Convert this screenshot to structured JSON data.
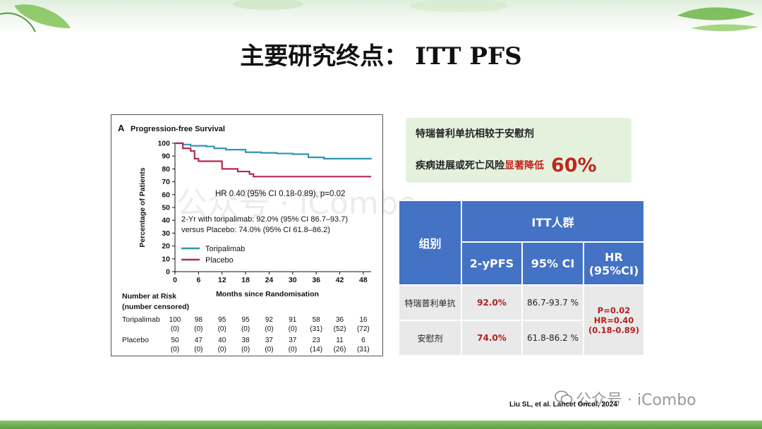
{
  "slide": {
    "title_cn": "主要研究终点：",
    "title_en": "ITT PFS"
  },
  "chart_data": {
    "type": "line",
    "panel_label": "A",
    "title": "Progression-free Survival",
    "xlabel": "Months since Randomisation",
    "ylabel": "Percentage of Patients",
    "xlim": [
      0,
      50
    ],
    "ylim": [
      0,
      100
    ],
    "x_ticks": [
      0,
      6,
      12,
      18,
      24,
      30,
      36,
      42,
      48
    ],
    "y_ticks": [
      0,
      10,
      20,
      30,
      40,
      50,
      60,
      70,
      80,
      90,
      100
    ],
    "grid": false,
    "legend_position": "bottom-left",
    "series": [
      {
        "name": "Toripalimab",
        "color": "#2e95b3",
        "points": [
          [
            0,
            100
          ],
          [
            2,
            99
          ],
          [
            4,
            98
          ],
          [
            8,
            97.5
          ],
          [
            10,
            96
          ],
          [
            13,
            95
          ],
          [
            18,
            93
          ],
          [
            22,
            92.5
          ],
          [
            26,
            92
          ],
          [
            30,
            91.5
          ],
          [
            34,
            89
          ],
          [
            38,
            88
          ],
          [
            44,
            88
          ],
          [
            50,
            87.5
          ]
        ]
      },
      {
        "name": "Placebo",
        "color": "#b22a4d",
        "points": [
          [
            0,
            100
          ],
          [
            2,
            96
          ],
          [
            4,
            94
          ],
          [
            5,
            88
          ],
          [
            6,
            86
          ],
          [
            11,
            86
          ],
          [
            12,
            80
          ],
          [
            15,
            80
          ],
          [
            16,
            78
          ],
          [
            19,
            76
          ],
          [
            20,
            74
          ],
          [
            50,
            74
          ]
        ]
      }
    ],
    "annotations": [
      "HR 0.40 (95% CI 0.18-0.89), p=0.02",
      "2-Yr with toripalimab: 92.0% (95% CI 86.7–93.7)",
      "versus Placebo: 74.0% (95% CI 61.8–86.2)"
    ],
    "risk_table": {
      "title_line1": "Number at Risk",
      "title_line2": "(number censored)",
      "rows": [
        {
          "name": "Toripalimab",
          "at_risk": [
            "100",
            "98",
            "95",
            "95",
            "92",
            "91",
            "58",
            "36",
            "16"
          ],
          "censored": [
            "(0)",
            "(0)",
            "(0)",
            "(0)",
            "(0)",
            "(0)",
            "(31)",
            "(52)",
            "(72)"
          ]
        },
        {
          "name": "Placebo",
          "at_risk": [
            "50",
            "47",
            "40",
            "38",
            "37",
            "37",
            "23",
            "11",
            "6"
          ],
          "censored": [
            "(0)",
            "(0)",
            "(0)",
            "(0)",
            "(0)",
            "(0)",
            "(14)",
            "(26)",
            "(31)"
          ]
        }
      ]
    }
  },
  "callout": {
    "line1": "特瑞普利单抗相较于安慰剂",
    "line2_normal": "疾病进展或死亡风险",
    "line2_highlight": "显著降低",
    "line2_value": "60%"
  },
  "table": {
    "col_group": "组别",
    "col_itt": "ITT人群",
    "col_pfs": "2-yPFS",
    "col_ci": "95% CI",
    "col_hr_line1": "HR",
    "col_hr_line2": "(95%CI)",
    "rows": [
      {
        "group": "特瑞普利单抗",
        "pfs": "92.0%",
        "ci": "86.7-93.7 %"
      },
      {
        "group": "安慰剂",
        "pfs": "74.0%",
        "ci": "61.8-86.2 %"
      }
    ],
    "hr_line1": "P=0.02",
    "hr_line2": "HR=0.40",
    "hr_line3": "(0.18-0.89)"
  },
  "citation": "Liu SL, et al. Lancet Oncol, 2024",
  "watermark": "公众号 · iCombo",
  "watermark_faint": "公众号 · iCombo",
  "colors": {
    "header_blue": "#4472c4",
    "highlight_red": "#c0261e",
    "callout_green": "#e4f2dd"
  }
}
